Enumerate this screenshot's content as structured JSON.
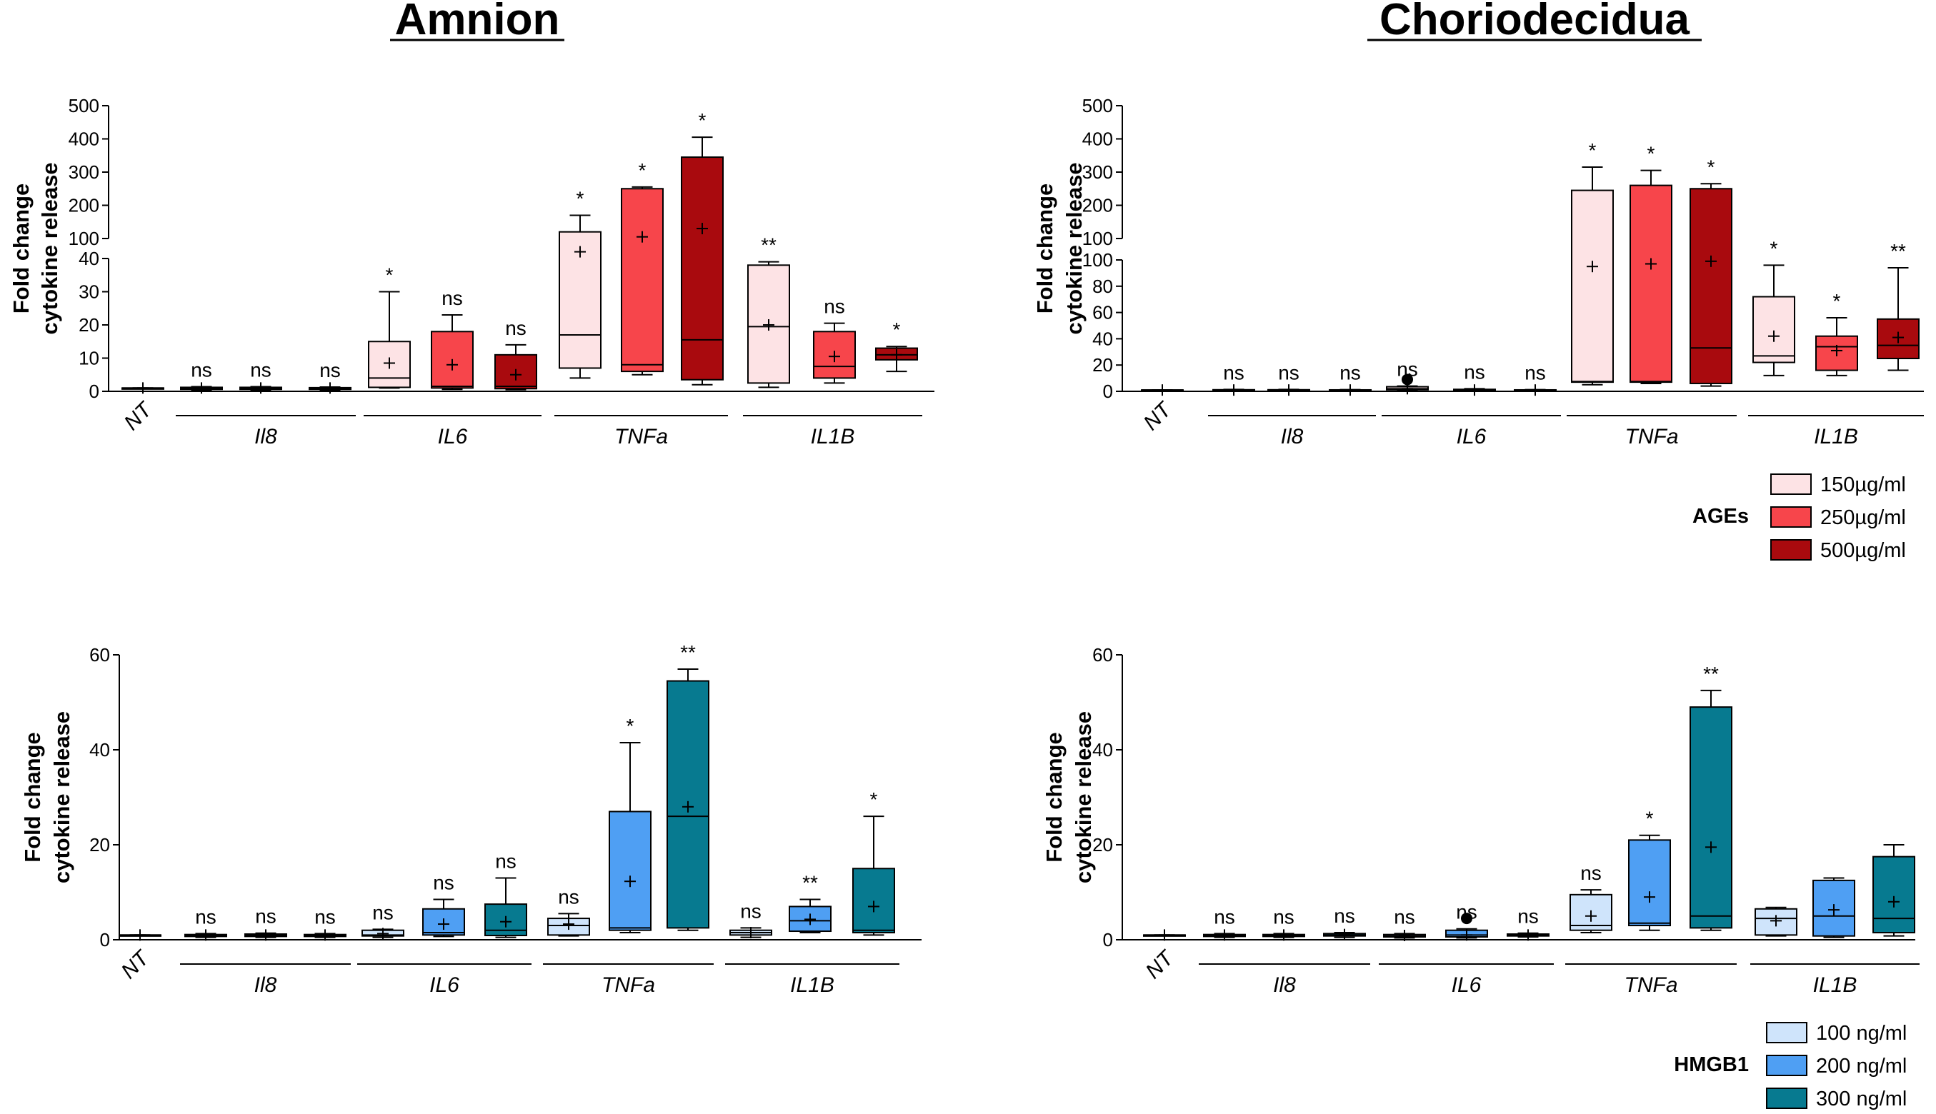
{
  "titles": {
    "amnion": "Amnion",
    "choriodecidua": "Choriodecidua"
  },
  "y_axis_label": [
    "Fold change",
    "cytokine release"
  ],
  "legends": {
    "ages": {
      "title": "AGEs",
      "entries": [
        "150µg/ml",
        "250µg/ml",
        "500µg/ml"
      ],
      "colors": [
        "#fde3e5",
        "#f7454b",
        "#a90a0e"
      ]
    },
    "hmgb1": {
      "title": "HMGB1",
      "entries": [
        "100 ng/ml",
        "200 ng/ml",
        "300 ng/ml"
      ],
      "colors": [
        "#cfe4fb",
        "#4f9ff3",
        "#077a90"
      ]
    }
  },
  "chart_data": [
    {
      "id": "ages-amnion",
      "type": "box",
      "title": "Amnion",
      "ylabel": "Fold change cytokine release",
      "broken_axis": true,
      "lower_ylim": [
        0,
        40
      ],
      "lower_ticks": [
        0,
        10,
        20,
        30,
        40
      ],
      "upper_ylim": [
        100,
        500
      ],
      "upper_ticks": [
        100,
        200,
        300,
        400,
        500
      ],
      "control": "NT",
      "groups": [
        "Il8",
        "IL6",
        "TNFa",
        "IL1B"
      ],
      "legend": "ages",
      "boxes": [
        {
          "group": "NT",
          "dose": 0,
          "min": 1,
          "q1": 1,
          "median": 1,
          "q3": 1,
          "max": 1,
          "mean": 1,
          "sig": ""
        },
        {
          "group": "Il8",
          "dose": 0,
          "min": 0.4,
          "q1": 0.6,
          "median": 0.9,
          "q3": 1.2,
          "max": 1.4,
          "mean": 1,
          "sig": "ns"
        },
        {
          "group": "Il8",
          "dose": 1,
          "min": 0.4,
          "q1": 0.6,
          "median": 0.9,
          "q3": 1.2,
          "max": 1.4,
          "mean": 1,
          "sig": "ns"
        },
        {
          "group": "Il8",
          "dose": 2,
          "min": 0.4,
          "q1": 0.6,
          "median": 0.9,
          "q3": 1.1,
          "max": 1.3,
          "mean": 1,
          "sig": "ns"
        },
        {
          "group": "IL6",
          "dose": 0,
          "min": 1,
          "q1": 1.2,
          "median": 4,
          "q3": 15,
          "max": 30,
          "mean": 8.5,
          "sig": "*"
        },
        {
          "group": "IL6",
          "dose": 1,
          "min": 0.6,
          "q1": 1,
          "median": 1.5,
          "q3": 18,
          "max": 23,
          "mean": 8,
          "sig": "ns"
        },
        {
          "group": "IL6",
          "dose": 2,
          "min": 0.5,
          "q1": 0.8,
          "median": 1.5,
          "q3": 11,
          "max": 14,
          "mean": 5,
          "sig": "ns"
        },
        {
          "group": "TNFa",
          "dose": 0,
          "min": 4,
          "q1": 7,
          "median": 17,
          "q3": 120,
          "max": 170,
          "mean": 60,
          "sig": "*"
        },
        {
          "group": "TNFa",
          "dose": 1,
          "min": 5,
          "q1": 6,
          "median": 8,
          "q3": 250,
          "max": 255,
          "mean": 105,
          "sig": "*"
        },
        {
          "group": "TNFa",
          "dose": 2,
          "min": 2,
          "q1": 3.5,
          "median": 15.5,
          "q3": 345,
          "max": 405,
          "mean": 130,
          "sig": "*"
        },
        {
          "group": "IL1B",
          "dose": 0,
          "min": 1.2,
          "q1": 2.5,
          "median": 19.5,
          "q3": 38,
          "max": 39,
          "mean": 20,
          "sig": "**"
        },
        {
          "group": "IL1B",
          "dose": 1,
          "min": 2.5,
          "q1": 4,
          "median": 7.5,
          "q3": 18,
          "max": 20.5,
          "mean": 10.5,
          "sig": "ns"
        },
        {
          "group": "IL1B",
          "dose": 2,
          "min": 6,
          "q1": 9.5,
          "median": 11,
          "q3": 13,
          "max": 13.5,
          "mean": 11,
          "sig": "*"
        }
      ]
    },
    {
      "id": "ages-choriodecidua",
      "type": "box",
      "title": "Choriodecidua",
      "ylabel": "Fold change cytokine release",
      "broken_axis": true,
      "lower_ylim": [
        0,
        100
      ],
      "lower_ticks": [
        0,
        20,
        40,
        60,
        80,
        100
      ],
      "upper_ylim": [
        100,
        500
      ],
      "upper_ticks": [
        100,
        200,
        300,
        400,
        500
      ],
      "control": "NT",
      "groups": [
        "Il8",
        "IL6",
        "TNFa",
        "IL1B"
      ],
      "legend": "ages",
      "boxes": [
        {
          "group": "NT",
          "dose": 0,
          "min": 1,
          "q1": 1,
          "median": 1,
          "q3": 1,
          "max": 1,
          "mean": 1,
          "sig": ""
        },
        {
          "group": "Il8",
          "dose": 0,
          "min": 0.5,
          "q1": 0.8,
          "median": 1,
          "q3": 1.2,
          "max": 1.4,
          "mean": 1,
          "sig": "ns"
        },
        {
          "group": "Il8",
          "dose": 1,
          "min": 0.5,
          "q1": 0.8,
          "median": 1,
          "q3": 1.2,
          "max": 1.4,
          "mean": 1,
          "sig": "ns"
        },
        {
          "group": "Il8",
          "dose": 2,
          "min": 0.5,
          "q1": 0.8,
          "median": 1,
          "q3": 1.1,
          "max": 1.3,
          "mean": 1,
          "sig": "ns"
        },
        {
          "group": "IL6",
          "dose": 0,
          "min": 0.8,
          "q1": 1.2,
          "median": 2,
          "q3": 3.5,
          "max": 4,
          "mean": 2,
          "sig": "ns",
          "outlier": 9
        },
        {
          "group": "IL6",
          "dose": 1,
          "min": 0.5,
          "q1": 0.8,
          "median": 1,
          "q3": 1.5,
          "max": 2,
          "mean": 1,
          "sig": "ns"
        },
        {
          "group": "IL6",
          "dose": 2,
          "min": 0.5,
          "q1": 0.7,
          "median": 0.9,
          "q3": 1.1,
          "max": 1.3,
          "mean": 1,
          "sig": "ns"
        },
        {
          "group": "TNFa",
          "dose": 0,
          "min": 5,
          "q1": 7,
          "median": 7.5,
          "q3": 245,
          "max": 315,
          "mean": 95,
          "sig": "*"
        },
        {
          "group": "TNFa",
          "dose": 1,
          "min": 6,
          "q1": 7,
          "median": 7.5,
          "q3": 260,
          "max": 305,
          "mean": 97,
          "sig": "*"
        },
        {
          "group": "TNFa",
          "dose": 2,
          "min": 4,
          "q1": 6,
          "median": 33,
          "q3": 250,
          "max": 265,
          "mean": 99,
          "sig": "*"
        },
        {
          "group": "IL1B",
          "dose": 0,
          "min": 12,
          "q1": 22,
          "median": 27,
          "q3": 72,
          "max": 96,
          "mean": 42,
          "sig": "*"
        },
        {
          "group": "IL1B",
          "dose": 1,
          "min": 12,
          "q1": 16,
          "median": 34,
          "q3": 42,
          "max": 56,
          "mean": 31,
          "sig": "*"
        },
        {
          "group": "IL1B",
          "dose": 2,
          "min": 16,
          "q1": 25,
          "median": 35,
          "q3": 55,
          "max": 94,
          "mean": 41,
          "sig": "**"
        }
      ]
    },
    {
      "id": "hmgb1-amnion",
      "type": "box",
      "ylabel": "Fold change cytokine release",
      "broken_axis": false,
      "ylim": [
        0,
        60
      ],
      "ticks": [
        0,
        20,
        40,
        60
      ],
      "control": "NT",
      "groups": [
        "Il8",
        "IL6",
        "TNFa",
        "IL1B"
      ],
      "legend": "hmgb1",
      "boxes": [
        {
          "group": "NT",
          "dose": 0,
          "min": 1,
          "q1": 1,
          "median": 1,
          "q3": 1,
          "max": 1,
          "mean": 1,
          "sig": ""
        },
        {
          "group": "Il8",
          "dose": 0,
          "min": 0.5,
          "q1": 0.7,
          "median": 0.9,
          "q3": 1.1,
          "max": 1.3,
          "mean": 1,
          "sig": "ns"
        },
        {
          "group": "Il8",
          "dose": 1,
          "min": 0.5,
          "q1": 0.7,
          "median": 0.9,
          "q3": 1.2,
          "max": 1.4,
          "mean": 1,
          "sig": "ns"
        },
        {
          "group": "Il8",
          "dose": 2,
          "min": 0.5,
          "q1": 0.7,
          "median": 0.9,
          "q3": 1.1,
          "max": 1.3,
          "mean": 1,
          "sig": "ns"
        },
        {
          "group": "IL6",
          "dose": 0,
          "min": 0.5,
          "q1": 0.8,
          "median": 1,
          "q3": 2,
          "max": 2.2,
          "mean": 1.3,
          "sig": "ns"
        },
        {
          "group": "IL6",
          "dose": 1,
          "min": 0.7,
          "q1": 1,
          "median": 1.5,
          "q3": 6.5,
          "max": 8.5,
          "mean": 3.3,
          "sig": "ns"
        },
        {
          "group": "IL6",
          "dose": 2,
          "min": 0.5,
          "q1": 0.9,
          "median": 2,
          "q3": 7.5,
          "max": 13,
          "mean": 3.8,
          "sig": "ns"
        },
        {
          "group": "TNFa",
          "dose": 0,
          "min": 0.8,
          "q1": 1,
          "median": 3,
          "q3": 4.5,
          "max": 5.5,
          "mean": 3.3,
          "sig": "ns"
        },
        {
          "group": "TNFa",
          "dose": 1,
          "min": 1.5,
          "q1": 2,
          "median": 2.5,
          "q3": 27,
          "max": 41.5,
          "mean": 12.3,
          "sig": "*"
        },
        {
          "group": "TNFa",
          "dose": 2,
          "min": 2,
          "q1": 2.5,
          "median": 26,
          "q3": 54.5,
          "max": 57,
          "mean": 28,
          "sig": "**"
        },
        {
          "group": "IL1B",
          "dose": 0,
          "min": 0.5,
          "q1": 1,
          "median": 1.5,
          "q3": 2,
          "max": 2.5,
          "mean": 1.5,
          "sig": "ns"
        },
        {
          "group": "IL1B",
          "dose": 1,
          "min": 1.5,
          "q1": 1.8,
          "median": 4,
          "q3": 7,
          "max": 8.5,
          "mean": 4.3,
          "sig": "**"
        },
        {
          "group": "IL1B",
          "dose": 2,
          "min": 1,
          "q1": 1.5,
          "median": 2,
          "q3": 15,
          "max": 26,
          "mean": 7,
          "sig": "*"
        }
      ]
    },
    {
      "id": "hmgb1-choriodecidua",
      "type": "box",
      "ylabel": "Fold change cytokine release",
      "broken_axis": false,
      "ylim": [
        0,
        60
      ],
      "ticks": [
        0,
        20,
        40,
        60
      ],
      "control": "NT",
      "groups": [
        "Il8",
        "IL6",
        "TNFa",
        "IL1B"
      ],
      "legend": "hmgb1",
      "boxes": [
        {
          "group": "NT",
          "dose": 0,
          "min": 1,
          "q1": 1,
          "median": 1,
          "q3": 1,
          "max": 1,
          "mean": 1,
          "sig": ""
        },
        {
          "group": "Il8",
          "dose": 0,
          "min": 0.5,
          "q1": 0.7,
          "median": 0.9,
          "q3": 1.1,
          "max": 1.3,
          "mean": 1,
          "sig": "ns"
        },
        {
          "group": "Il8",
          "dose": 1,
          "min": 0.5,
          "q1": 0.7,
          "median": 0.9,
          "q3": 1.1,
          "max": 1.3,
          "mean": 1,
          "sig": "ns"
        },
        {
          "group": "Il8",
          "dose": 2,
          "min": 0.5,
          "q1": 0.8,
          "median": 1,
          "q3": 1.3,
          "max": 1.5,
          "mean": 1.1,
          "sig": "ns"
        },
        {
          "group": "IL6",
          "dose": 0,
          "min": 0.4,
          "q1": 0.6,
          "median": 0.8,
          "q3": 1.1,
          "max": 1.3,
          "mean": 0.9,
          "sig": "ns"
        },
        {
          "group": "IL6",
          "dose": 1,
          "min": 0.4,
          "q1": 0.6,
          "median": 1,
          "q3": 2,
          "max": 2.3,
          "mean": 1,
          "sig": "ns",
          "outlier": 4.5
        },
        {
          "group": "IL6",
          "dose": 2,
          "min": 0.6,
          "q1": 0.8,
          "median": 1,
          "q3": 1.2,
          "max": 1.4,
          "mean": 1,
          "sig": "ns"
        },
        {
          "group": "TNFa",
          "dose": 0,
          "min": 1.5,
          "q1": 2,
          "median": 3,
          "q3": 9.5,
          "max": 10.5,
          "mean": 5,
          "sig": "ns"
        },
        {
          "group": "TNFa",
          "dose": 1,
          "min": 2,
          "q1": 3,
          "median": 3.5,
          "q3": 21,
          "max": 22,
          "mean": 9,
          "sig": "*"
        },
        {
          "group": "TNFa",
          "dose": 2,
          "min": 2,
          "q1": 2.5,
          "median": 5,
          "q3": 49,
          "max": 52.5,
          "mean": 19.5,
          "sig": "**"
        },
        {
          "group": "IL1B",
          "dose": 0,
          "min": 0.8,
          "q1": 1,
          "median": 4.5,
          "q3": 6.5,
          "max": 6.8,
          "mean": 4,
          "sig": ""
        },
        {
          "group": "IL1B",
          "dose": 1,
          "min": 0.5,
          "q1": 0.8,
          "median": 5,
          "q3": 12.5,
          "max": 13,
          "mean": 6.3,
          "sig": ""
        },
        {
          "group": "IL1B",
          "dose": 2,
          "min": 0.8,
          "q1": 1.5,
          "median": 4.5,
          "q3": 17.5,
          "max": 20,
          "mean": 8,
          "sig": ""
        }
      ]
    }
  ]
}
